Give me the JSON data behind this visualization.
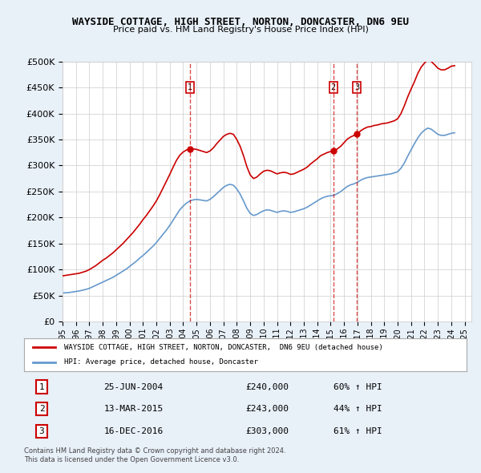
{
  "title": "WAYSIDE COTTAGE, HIGH STREET, NORTON, DONCASTER, DN6 9EU",
  "subtitle": "Price paid vs. HM Land Registry's House Price Index (HPI)",
  "legend_line1": "WAYSIDE COTTAGE, HIGH STREET, NORTON, DONCASTER,  DN6 9EU (detached house)",
  "legend_line2": "HPI: Average price, detached house, Doncaster",
  "footnote1": "Contains HM Land Registry data © Crown copyright and database right 2024.",
  "footnote2": "This data is licensed under the Open Government Licence v3.0.",
  "transactions": [
    {
      "num": 1,
      "date": "25-JUN-2004",
      "price": "£240,000",
      "change": "60% ↑ HPI"
    },
    {
      "num": 2,
      "date": "13-MAR-2015",
      "price": "£243,000",
      "change": "44% ↑ HPI"
    },
    {
      "num": 3,
      "date": "16-DEC-2016",
      "price": "£303,000",
      "change": "61% ↑ HPI"
    }
  ],
  "transaction_dates_decimal": [
    2004.48,
    2015.19,
    2016.96
  ],
  "transaction_prices": [
    240000,
    243000,
    303000
  ],
  "red_line_color": "#cc0000",
  "blue_line_color": "#6699cc",
  "background_color": "#e8f0f8",
  "plot_bg_color": "#ffffff",
  "ylim": [
    0,
    500000
  ],
  "xlim_start": 1995.0,
  "xlim_end": 2025.5,
  "hpi_x": [
    1995.0,
    1995.25,
    1995.5,
    1995.75,
    1996.0,
    1996.25,
    1996.5,
    1996.75,
    1997.0,
    1997.25,
    1997.5,
    1997.75,
    1998.0,
    1998.25,
    1998.5,
    1998.75,
    1999.0,
    1999.25,
    1999.5,
    1999.75,
    2000.0,
    2000.25,
    2000.5,
    2000.75,
    2001.0,
    2001.25,
    2001.5,
    2001.75,
    2002.0,
    2002.25,
    2002.5,
    2002.75,
    2003.0,
    2003.25,
    2003.5,
    2003.75,
    2004.0,
    2004.25,
    2004.5,
    2004.75,
    2005.0,
    2005.25,
    2005.5,
    2005.75,
    2006.0,
    2006.25,
    2006.5,
    2006.75,
    2007.0,
    2007.25,
    2007.5,
    2007.75,
    2008.0,
    2008.25,
    2008.5,
    2008.75,
    2009.0,
    2009.25,
    2009.5,
    2009.75,
    2010.0,
    2010.25,
    2010.5,
    2010.75,
    2011.0,
    2011.25,
    2011.5,
    2011.75,
    2012.0,
    2012.25,
    2012.5,
    2012.75,
    2013.0,
    2013.25,
    2013.5,
    2013.75,
    2014.0,
    2014.25,
    2014.5,
    2014.75,
    2015.0,
    2015.25,
    2015.5,
    2015.75,
    2016.0,
    2016.25,
    2016.5,
    2016.75,
    2017.0,
    2017.25,
    2017.5,
    2017.75,
    2018.0,
    2018.25,
    2018.5,
    2018.75,
    2019.0,
    2019.25,
    2019.5,
    2019.75,
    2020.0,
    2020.25,
    2020.5,
    2020.75,
    2021.0,
    2021.25,
    2021.5,
    2021.75,
    2022.0,
    2022.25,
    2022.5,
    2022.75,
    2023.0,
    2023.25,
    2023.5,
    2023.75,
    2024.0,
    2024.25
  ],
  "hpi_y": [
    55000,
    55500,
    56000,
    57000,
    58000,
    59000,
    60500,
    62000,
    64000,
    67000,
    70000,
    73000,
    76000,
    79000,
    82000,
    85000,
    89000,
    93000,
    97000,
    101000,
    106000,
    111000,
    116000,
    122000,
    127000,
    133000,
    139000,
    145000,
    152000,
    160000,
    168000,
    176000,
    185000,
    195000,
    205000,
    215000,
    222000,
    228000,
    232000,
    234000,
    235000,
    234000,
    233000,
    232000,
    235000,
    240000,
    246000,
    252000,
    258000,
    262000,
    264000,
    262000,
    255000,
    245000,
    232000,
    218000,
    208000,
    204000,
    206000,
    210000,
    213000,
    215000,
    214000,
    212000,
    210000,
    212000,
    213000,
    212000,
    210000,
    211000,
    213000,
    215000,
    217000,
    220000,
    224000,
    228000,
    232000,
    236000,
    239000,
    241000,
    242000,
    243000,
    246000,
    250000,
    255000,
    260000,
    263000,
    265000,
    268000,
    272000,
    275000,
    277000,
    278000,
    279000,
    280000,
    281000,
    282000,
    283000,
    284000,
    286000,
    288000,
    295000,
    305000,
    318000,
    330000,
    342000,
    353000,
    362000,
    368000,
    372000,
    370000,
    365000,
    360000,
    358000,
    358000,
    360000,
    362000,
    363000
  ],
  "red_line_x": [
    1995.0,
    1995.25,
    1995.5,
    1995.75,
    1996.0,
    1996.25,
    1996.5,
    1996.75,
    1997.0,
    1997.25,
    1997.5,
    1997.75,
    1998.0,
    1998.25,
    1998.5,
    1998.75,
    1999.0,
    1999.25,
    1999.5,
    1999.75,
    2000.0,
    2000.25,
    2000.5,
    2000.75,
    2001.0,
    2001.25,
    2001.5,
    2001.75,
    2002.0,
    2002.25,
    2002.5,
    2002.75,
    2003.0,
    2003.25,
    2003.5,
    2003.75,
    2004.0,
    2004.25,
    2004.5,
    2004.75,
    2005.0,
    2005.25,
    2005.5,
    2005.75,
    2006.0,
    2006.25,
    2006.5,
    2006.75,
    2007.0,
    2007.25,
    2007.5,
    2007.75,
    2008.0,
    2008.25,
    2008.5,
    2008.75,
    2009.0,
    2009.25,
    2009.5,
    2009.75,
    2010.0,
    2010.25,
    2010.5,
    2010.75,
    2011.0,
    2011.25,
    2011.5,
    2011.75,
    2012.0,
    2012.25,
    2012.5,
    2012.75,
    2013.0,
    2013.25,
    2013.5,
    2013.75,
    2014.0,
    2014.25,
    2014.5,
    2014.75,
    2015.0,
    2015.25,
    2015.5,
    2015.75,
    2016.0,
    2016.25,
    2016.5,
    2016.75,
    2017.0,
    2017.25,
    2017.5,
    2017.75,
    2018.0,
    2018.25,
    2018.5,
    2018.75,
    2019.0,
    2019.25,
    2019.5,
    2019.75,
    2020.0,
    2020.25,
    2020.5,
    2020.75,
    2021.0,
    2021.25,
    2021.5,
    2021.75,
    2022.0,
    2022.25,
    2022.5,
    2022.75,
    2023.0,
    2023.25,
    2023.5,
    2023.75,
    2024.0,
    2024.25
  ],
  "red_line_y": [
    88000,
    89000,
    90000,
    91000,
    92000,
    93000,
    95000,
    97000,
    100000,
    104000,
    108000,
    113000,
    118000,
    122000,
    127000,
    132000,
    138000,
    144000,
    150000,
    157000,
    164000,
    171000,
    179000,
    187000,
    196000,
    204000,
    213000,
    222000,
    232000,
    244000,
    257000,
    270000,
    283000,
    297000,
    310000,
    320000,
    326000,
    330000,
    332000,
    332000,
    331000,
    329000,
    327000,
    325000,
    328000,
    334000,
    342000,
    349000,
    356000,
    360000,
    362000,
    360000,
    350000,
    337000,
    319000,
    298000,
    282000,
    275000,
    278000,
    284000,
    289000,
    291000,
    290000,
    287000,
    284000,
    286000,
    287000,
    286000,
    283000,
    284000,
    287000,
    290000,
    293000,
    297000,
    303000,
    308000,
    313000,
    319000,
    322000,
    325000,
    327000,
    328000,
    332000,
    337000,
    344000,
    351000,
    355000,
    358000,
    361000,
    367000,
    371000,
    374000,
    375000,
    377000,
    378000,
    380000,
    381000,
    382000,
    384000,
    386000,
    390000,
    400000,
    415000,
    432000,
    447000,
    461000,
    477000,
    489000,
    497000,
    504000,
    500000,
    494000,
    487000,
    484000,
    484000,
    487000,
    491000,
    492000
  ],
  "xtick_years": [
    1995,
    1996,
    1997,
    1998,
    1999,
    2000,
    2001,
    2002,
    2003,
    2004,
    2005,
    2006,
    2007,
    2008,
    2009,
    2010,
    2011,
    2012,
    2013,
    2014,
    2015,
    2016,
    2017,
    2018,
    2019,
    2020,
    2021,
    2022,
    2023,
    2024,
    2025
  ]
}
